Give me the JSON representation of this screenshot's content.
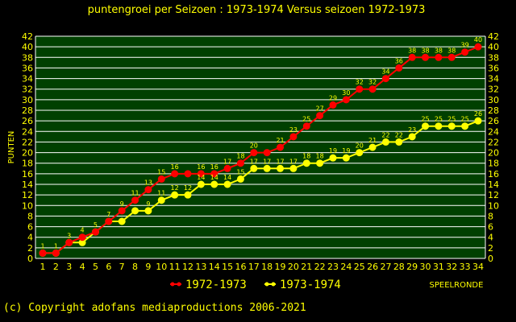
{
  "chart_data": {
    "type": "line",
    "title": "puntengroei per Seizoen : 1973-1974 Versus seizoen 1972-1973",
    "xlabel": "SPEELRONDE",
    "ylabel": "PUNTEN",
    "x": [
      1,
      2,
      3,
      4,
      5,
      6,
      7,
      8,
      9,
      10,
      11,
      12,
      13,
      14,
      15,
      16,
      17,
      18,
      19,
      20,
      21,
      22,
      23,
      24,
      25,
      26,
      27,
      28,
      29,
      30,
      31,
      32,
      33,
      34
    ],
    "xlim": [
      1,
      34
    ],
    "ylim": [
      0,
      42
    ],
    "yticks": [
      0,
      2,
      4,
      6,
      8,
      10,
      12,
      14,
      16,
      18,
      20,
      22,
      24,
      26,
      28,
      30,
      32,
      34,
      36,
      38,
      40,
      42
    ],
    "grid": true,
    "legend_position": "bottom-center",
    "series": [
      {
        "name": "1972-1973",
        "color": "#ff0000",
        "values": [
          1,
          1,
          3,
          4,
          5,
          7,
          9,
          11,
          13,
          15,
          16,
          16,
          16,
          16,
          17,
          18,
          20,
          20,
          21,
          23,
          25,
          27,
          29,
          30,
          32,
          32,
          34,
          36,
          38,
          38,
          38,
          38,
          39,
          40
        ],
        "labeled": [
          true,
          true,
          true,
          true,
          true,
          true,
          true,
          true,
          true,
          true,
          true,
          false,
          true,
          true,
          true,
          true,
          true,
          false,
          true,
          true,
          true,
          true,
          true,
          true,
          true,
          true,
          true,
          true,
          true,
          true,
          true,
          true,
          true,
          true
        ]
      },
      {
        "name": "1973-1974",
        "color": "#ffff00",
        "values": [
          1,
          1,
          3,
          3,
          5,
          7,
          7,
          9,
          9,
          11,
          12,
          12,
          14,
          14,
          14,
          15,
          17,
          17,
          17,
          17,
          18,
          18,
          19,
          19,
          20,
          21,
          22,
          22,
          23,
          25,
          25,
          25,
          25,
          26
        ],
        "labeled": [
          false,
          false,
          false,
          false,
          false,
          false,
          false,
          false,
          true,
          true,
          true,
          true,
          true,
          true,
          true,
          true,
          true,
          true,
          true,
          true,
          true,
          true,
          true,
          true,
          true,
          true,
          true,
          true,
          true,
          true,
          true,
          true,
          true,
          true
        ]
      }
    ]
  },
  "colors": {
    "background": "#000000",
    "plot_background": "#004000",
    "grid": "#ffffff",
    "text": "#ffff00"
  },
  "footer": {
    "copyright": "(c) Copyright adofans mediaproductions 2006-2021"
  }
}
